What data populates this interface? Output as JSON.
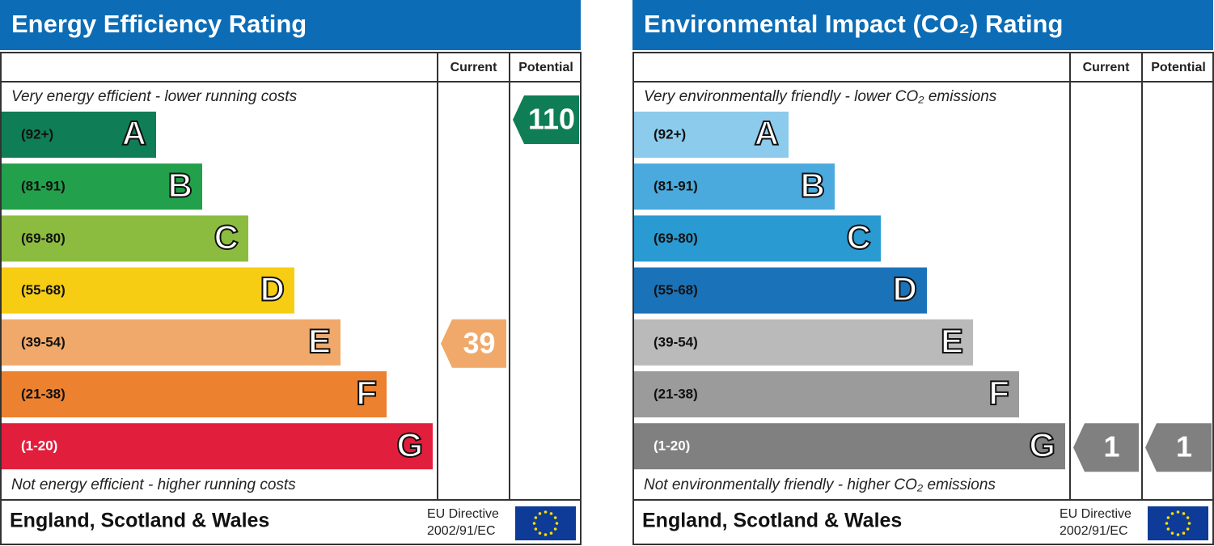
{
  "panels": [
    {
      "title": "Energy Efficiency Rating",
      "columns": [
        "Current",
        "Potential"
      ],
      "top_note": "Very energy efficient - lower running costs",
      "bottom_note": "Not energy efficient - higher running costs",
      "bands": [
        {
          "range": "(92+)",
          "letter": "A",
          "color": "#0f7d56"
        },
        {
          "range": "(81-91)",
          "letter": "B",
          "color": "#22a04b"
        },
        {
          "range": "(69-80)",
          "letter": "C",
          "color": "#8cbc3f"
        },
        {
          "range": "(55-68)",
          "letter": "D",
          "color": "#f7cd14"
        },
        {
          "range": "(39-54)",
          "letter": "E",
          "color": "#f0a96a"
        },
        {
          "range": "(21-38)",
          "letter": "F",
          "color": "#ec8130"
        },
        {
          "range": "(1-20)",
          "letter": "G",
          "color": "#e11f3c"
        }
      ],
      "current": 39,
      "potential": 110,
      "footer": "England, Scotland & Wales",
      "directive": [
        "EU Directive",
        "2002/91/EC"
      ]
    },
    {
      "title": "Environmental Impact (CO₂) Rating",
      "columns": [
        "Current",
        "Potential"
      ],
      "top_note": "Very environmentally friendly - lower CO₂ emissions",
      "bottom_note": "Not environmentally friendly - higher CO₂ emissions",
      "bands": [
        {
          "range": "(92+)",
          "letter": "A",
          "color": "#8ccbec"
        },
        {
          "range": "(81-91)",
          "letter": "B",
          "color": "#4aa9dd"
        },
        {
          "range": "(69-80)",
          "letter": "C",
          "color": "#2a9ad2"
        },
        {
          "range": "(55-68)",
          "letter": "D",
          "color": "#1a73b9"
        },
        {
          "range": "(39-54)",
          "letter": "E",
          "color": "#bababa"
        },
        {
          "range": "(21-38)",
          "letter": "F",
          "color": "#9b9b9b"
        },
        {
          "range": "(1-20)",
          "letter": "G",
          "color": "#808080"
        }
      ],
      "current": 1,
      "potential": 1,
      "footer": "England, Scotland & Wales",
      "directive": [
        "EU Directive",
        "2002/91/EC"
      ]
    }
  ]
}
